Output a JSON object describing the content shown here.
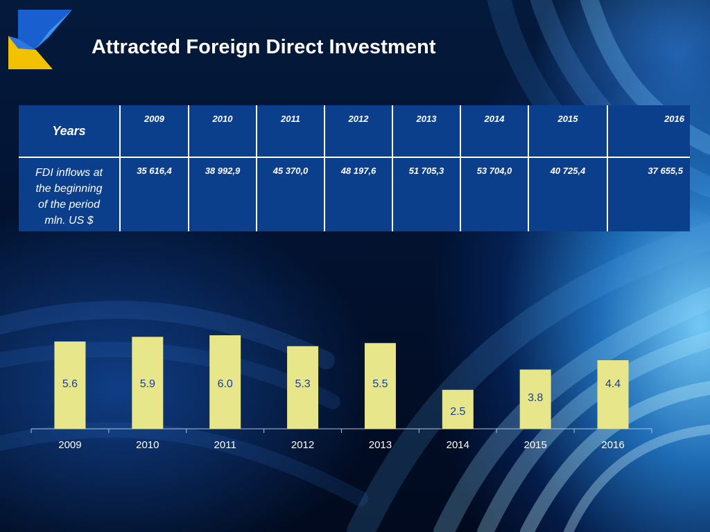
{
  "slide": {
    "title": "Attracted Foreign Direct Investment"
  },
  "table": {
    "header_label": "Years",
    "years": [
      "2009",
      "2010",
      "2011",
      "2012",
      "2013",
      "2014",
      "2015",
      "2016"
    ],
    "row_label_lines": [
      "FDI inflows at",
      "the beginning",
      "of the period",
      "mln. US $"
    ],
    "values": [
      "35 616,4",
      "38 992,9",
      "45 370,0",
      "48 197,6",
      "51 705,3",
      "53 704,0",
      "40 725,4",
      "37 655,5"
    ]
  },
  "chart_data": {
    "type": "bar",
    "title": "",
    "xlabel": "",
    "ylabel": "",
    "categories": [
      "2009",
      "2010",
      "2011",
      "2012",
      "2013",
      "2014",
      "2015",
      "2016"
    ],
    "values": [
      5.6,
      5.9,
      6.0,
      5.3,
      5.5,
      2.5,
      3.8,
      4.4
    ],
    "labels": [
      "5.6",
      "5.9",
      "6.0",
      "5.3",
      "5.5",
      "2.5",
      "3.8",
      "4.4"
    ],
    "ylim": [
      0,
      6.0
    ],
    "grid": false,
    "legend": "none",
    "bar_color": "#e8e68a",
    "label_color": "#1b3f8a",
    "tick_color": "#ffffff"
  },
  "colors": {
    "table_bg": "#0c3f8b",
    "logo_blue": "#1a5fd0",
    "logo_yellow": "#f2c200"
  }
}
